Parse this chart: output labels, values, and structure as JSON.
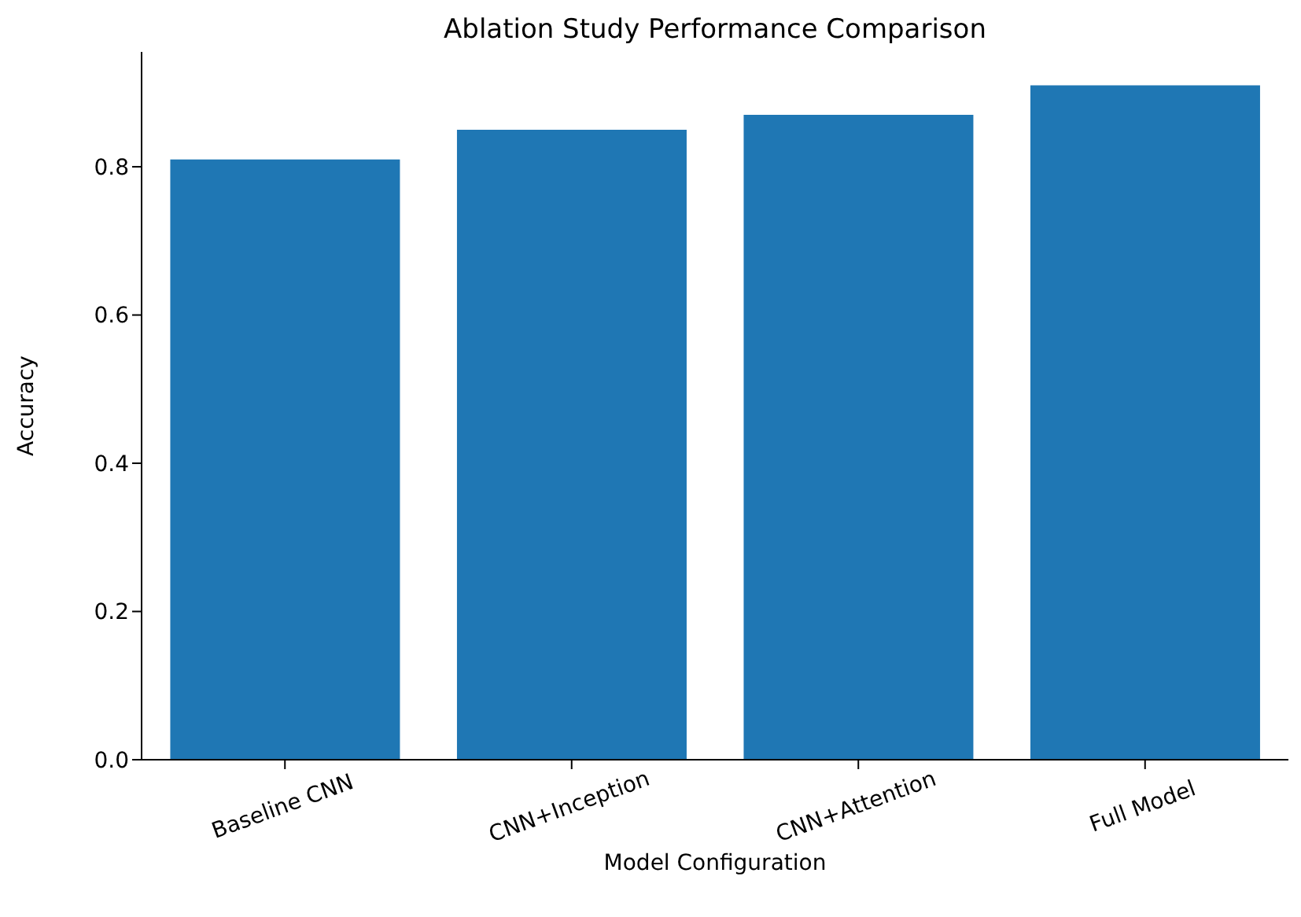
{
  "chart_data": {
    "type": "bar",
    "title": "Ablation Study Performance Comparison",
    "xlabel": "Model Configuration",
    "ylabel": "Accuracy",
    "categories": [
      "Baseline CNN",
      "CNN+Inception",
      "CNN+Attention",
      "Full Model"
    ],
    "values": [
      0.81,
      0.85,
      0.87,
      0.91
    ],
    "color": "#1f77b4",
    "ylim": [
      0,
      0.955
    ],
    "yticks": [
      {
        "value": 0,
        "label": "0.0"
      },
      {
        "value": 0.2,
        "label": "0.2"
      },
      {
        "value": 0.4,
        "label": "0.4"
      },
      {
        "value": 0.6,
        "label": "0.6"
      },
      {
        "value": 0.8,
        "label": "0.8"
      }
    ],
    "grid": false,
    "legend": false
  }
}
